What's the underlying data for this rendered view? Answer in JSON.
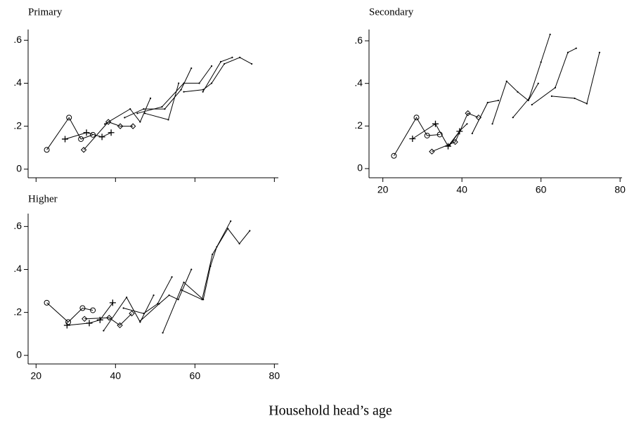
{
  "chart_data": [
    {
      "type": "line",
      "title": "Primary",
      "xlim": [
        18,
        81
      ],
      "ylim": [
        -0.04,
        0.65
      ],
      "xticks": [
        20,
        40,
        60,
        80
      ],
      "show_xtick_labels": false,
      "yticks": [
        {
          "value": 0,
          "label": "0"
        },
        {
          "value": 0.2,
          "label": ".2"
        },
        {
          "value": 0.4,
          "label": ".4"
        },
        {
          "value": 0.6,
          "label": ".6"
        }
      ],
      "series": [
        {
          "marker": "circle",
          "color": "#000000",
          "x": [
            22.7,
            28.3,
            31.3,
            34.3
          ],
          "y": [
            0.09,
            0.24,
            0.14,
            0.16
          ]
        },
        {
          "marker": "plus",
          "color": "#000000",
          "x": [
            27.3,
            32.7,
            36.6,
            38.9
          ],
          "y": [
            0.14,
            0.17,
            0.15,
            0.17
          ]
        },
        {
          "marker": "diamond",
          "color": "#000000",
          "x": [
            32,
            38.2,
            41.2,
            44.4
          ],
          "y": [
            0.09,
            0.22,
            0.2,
            0.2
          ]
        },
        {
          "marker": "dot",
          "color": "#000000",
          "x": [
            37.3,
            43.7,
            46.2,
            48.8
          ],
          "y": [
            0.21,
            0.28,
            0.22,
            0.33
          ]
        },
        {
          "marker": "dot",
          "color": "#000000",
          "x": [
            42.3,
            47.1,
            52.4,
            56.5,
            59.1
          ],
          "y": [
            0.24,
            0.28,
            0.28,
            0.37,
            0.47
          ]
        },
        {
          "marker": "dot",
          "color": "#000000",
          "x": [
            45.5,
            51.7,
            57.2,
            61.1,
            64.2
          ],
          "y": [
            0.26,
            0.29,
            0.4,
            0.4,
            0.48
          ]
        },
        {
          "marker": "dot",
          "color": "#000000",
          "x": [
            47.4,
            53.3,
            55.9
          ],
          "y": [
            0.26,
            0.23,
            0.4
          ]
        },
        {
          "marker": "dot",
          "color": "#000000",
          "x": [
            57.2,
            62.1,
            64.2,
            67.4,
            71.3,
            74.3
          ],
          "y": [
            0.36,
            0.37,
            0.4,
            0.49,
            0.52,
            0.49
          ]
        },
        {
          "marker": "dot",
          "color": "#000000",
          "x": [
            62,
            66.5,
            69.4
          ],
          "y": [
            0.36,
            0.5,
            0.52
          ]
        }
      ]
    },
    {
      "type": "line",
      "title": "Secondary",
      "xlim": [
        16.5,
        80.5
      ],
      "ylim": [
        -0.043,
        0.653
      ],
      "xticks": [
        20,
        40,
        60,
        80
      ],
      "show_xtick_labels": true,
      "yticks": [
        {
          "value": 0,
          "label": "0"
        },
        {
          "value": 0.2,
          "label": ".2"
        },
        {
          "value": 0.4,
          "label": ".4"
        },
        {
          "value": 0.6,
          "label": ".6"
        }
      ],
      "series": [
        {
          "marker": "circle",
          "color": "#000000",
          "x": [
            22.8,
            28.5,
            31.2,
            34.4
          ],
          "y": [
            0.06,
            0.24,
            0.155,
            0.16
          ]
        },
        {
          "marker": "plus",
          "color": "#000000",
          "x": [
            27.5,
            33.3,
            36.5,
            39.4
          ],
          "y": [
            0.14,
            0.21,
            0.105,
            0.175
          ]
        },
        {
          "marker": "diamond",
          "color": "#000000",
          "x": [
            32.4,
            38.3,
            41.5,
            44.2
          ],
          "y": [
            0.08,
            0.125,
            0.26,
            0.24
          ]
        },
        {
          "marker": "dot",
          "color": "#000000",
          "x": [
            36.9,
            39.6,
            41.3
          ],
          "y": [
            0.11,
            0.18,
            0.21
          ]
        },
        {
          "marker": "dot",
          "color": "#000000",
          "x": [
            42.6,
            46.5,
            49.2
          ],
          "y": [
            0.165,
            0.31,
            0.32
          ]
        },
        {
          "marker": "dot",
          "color": "#000000",
          "x": [
            47.7,
            51.3,
            54.1,
            56.8,
            59.3
          ],
          "y": [
            0.21,
            0.41,
            0.36,
            0.32,
            0.4
          ]
        },
        {
          "marker": "dot",
          "color": "#000000",
          "x": [
            52.9,
            57,
            60,
            62.3
          ],
          "y": [
            0.24,
            0.33,
            0.5,
            0.63
          ]
        },
        {
          "marker": "dot",
          "color": "#000000",
          "x": [
            57.7,
            63.6,
            66.8,
            68.9
          ],
          "y": [
            0.3,
            0.38,
            0.545,
            0.565
          ]
        },
        {
          "marker": "dot",
          "color": "#000000",
          "x": [
            62.7,
            68.5,
            71.6,
            74.8
          ],
          "y": [
            0.34,
            0.33,
            0.305,
            0.545
          ]
        }
      ]
    },
    {
      "type": "line",
      "title": "Higher",
      "xlim": [
        18,
        81
      ],
      "ylim": [
        -0.04,
        0.66
      ],
      "xticks": [
        20,
        40,
        60,
        80
      ],
      "show_xtick_labels": true,
      "yticks": [
        {
          "value": 0,
          "label": "0"
        },
        {
          "value": 0.2,
          "label": ".2"
        },
        {
          "value": 0.4,
          "label": ".4"
        },
        {
          "value": 0.6,
          "label": ".6"
        }
      ],
      "series": [
        {
          "marker": "circle",
          "color": "#000000",
          "x": [
            22.7,
            28.1,
            31.7,
            34.3
          ],
          "y": [
            0.245,
            0.155,
            0.22,
            0.21
          ]
        },
        {
          "marker": "plus",
          "color": "#000000",
          "x": [
            27.8,
            33.4,
            36.1,
            39.3
          ],
          "y": [
            0.14,
            0.15,
            0.165,
            0.245
          ]
        },
        {
          "marker": "diamond",
          "color": "#000000",
          "x": [
            32.2,
            38.4,
            41.1,
            44.1
          ],
          "y": [
            0.17,
            0.175,
            0.14,
            0.195
          ]
        },
        {
          "marker": "dot",
          "color": "#000000",
          "x": [
            37,
            42.8,
            46.2,
            49.6
          ],
          "y": [
            0.115,
            0.27,
            0.155,
            0.28
          ]
        },
        {
          "marker": "dot",
          "color": "#000000",
          "x": [
            42,
            47.1,
            50.6,
            54.2
          ],
          "y": [
            0.22,
            0.195,
            0.24,
            0.365
          ]
        },
        {
          "marker": "dot",
          "color": "#000000",
          "x": [
            46.2,
            51,
            53.5,
            55.8,
            59.1
          ],
          "y": [
            0.16,
            0.24,
            0.28,
            0.26,
            0.4
          ]
        },
        {
          "marker": "dot",
          "color": "#000000",
          "x": [
            51.9,
            57.2,
            62.1,
            63.9,
            65.5,
            69
          ],
          "y": [
            0.105,
            0.34,
            0.26,
            0.415,
            0.505,
            0.625
          ]
        },
        {
          "marker": "dot",
          "color": "#000000",
          "x": [
            56.5,
            61.8,
            64.4,
            68.3,
            71.2,
            73.8
          ],
          "y": [
            0.305,
            0.26,
            0.47,
            0.59,
            0.52,
            0.58
          ]
        }
      ]
    }
  ],
  "xlabel": "Household head’s age"
}
